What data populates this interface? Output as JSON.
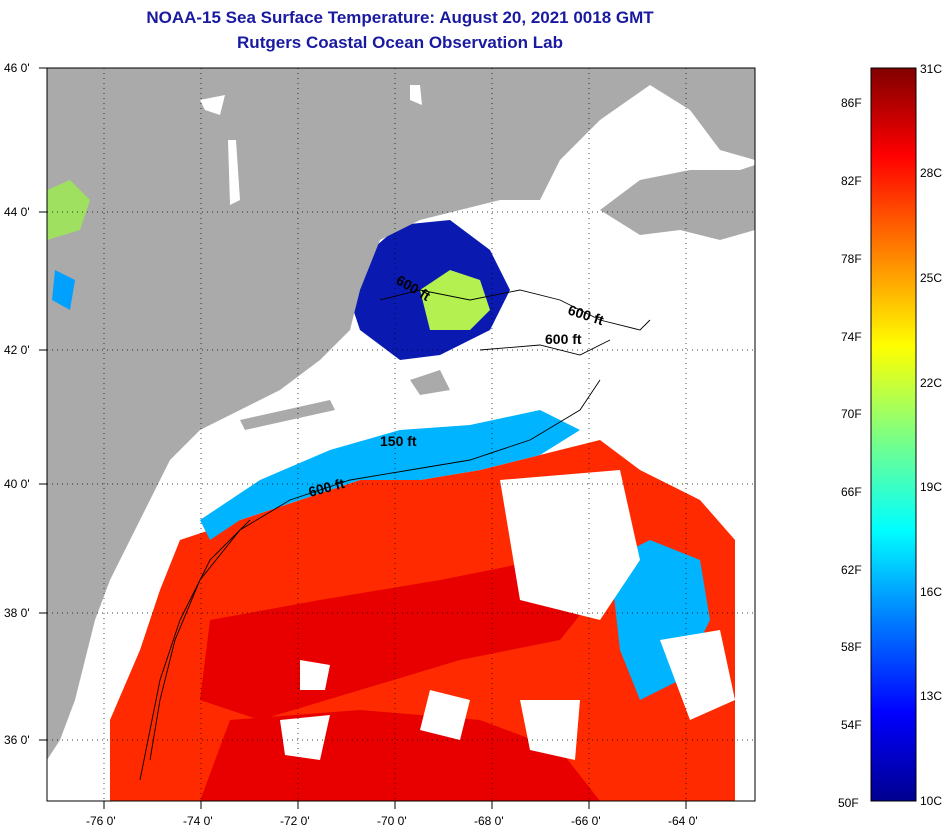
{
  "header": {
    "title": "NOAA-15 Sea Surface Temperature:  August 20, 2021 0018 GMT",
    "subtitle": "Rutgers Coastal Ocean Observation Lab"
  },
  "map": {
    "lat_ticks": [
      "46 0'",
      "44 0'",
      "42 0'",
      "40 0'",
      "38 0'",
      "36 0'"
    ],
    "lon_ticks": [
      "-76 0'",
      "-74 0'",
      "-72 0'",
      "-70 0'",
      "-68 0'",
      "-66 0'",
      "-64 0'"
    ],
    "contour_labels": [
      "600 ft",
      "600 ft",
      "600 ft",
      "150 ft",
      "600 ft"
    ],
    "colors": {
      "land": "#aaaaaa",
      "no_data": "#ffffff",
      "warm": "#ff2a00",
      "hot": "#e80000",
      "cool": "#00b4ff",
      "cold": "#0a1ab0",
      "mild": "#b4f050"
    }
  },
  "colorbar": {
    "fahrenheit": [
      "86F",
      "82F",
      "78F",
      "74F",
      "70F",
      "66F",
      "62F",
      "58F",
      "54F",
      "50F"
    ],
    "celsius": [
      "31C",
      "28C",
      "25C",
      "22C",
      "19C",
      "16C",
      "13C",
      "10C"
    ],
    "stops": [
      "#00008f",
      "#0000ff",
      "#0080ff",
      "#00ffff",
      "#80ff80",
      "#ffff00",
      "#ff8000",
      "#ff0000",
      "#800000"
    ]
  }
}
